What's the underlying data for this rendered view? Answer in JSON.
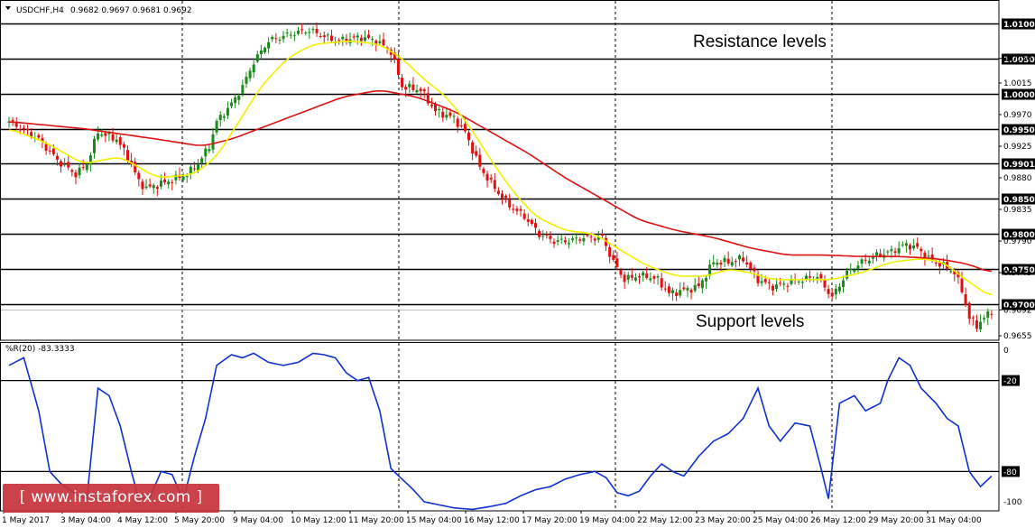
{
  "header": {
    "symbol": "USDCHF,H4",
    "ohlc": "0.9682 0.9697 0.9681 0.9692"
  },
  "annotations": {
    "resistance": "Resistance levels",
    "support": "Support levels"
  },
  "watermark": {
    "text": "[ www.instaforex.com ]"
  },
  "colors": {
    "bull": "#1a8a1a",
    "bear": "#e01010",
    "ma_fast": "#f0f000",
    "ma_slow": "#dd1111",
    "wpr": "#1030d0",
    "level_line": "#000000",
    "watermark": "#c8323c"
  },
  "chart_data": [
    {
      "type": "candlestick",
      "title": "USDCHF,H4",
      "ylim": [
        0.965,
        1.011
      ],
      "price_levels": [
        1.01,
        1.005,
        1.0,
        0.995,
        0.9901,
        0.985,
        0.98,
        0.975,
        0.97
      ],
      "price_level_labels": [
        "1.0100",
        "1.0050",
        "1.0000",
        "0.9950",
        "0.9901",
        "0.9850",
        "0.9800",
        "0.9750",
        "0.9700"
      ],
      "axis_ticks": [
        "1.0050",
        "1.0015",
        "0.9970",
        "0.9925",
        "0.9880",
        "0.9835",
        "0.9790",
        "0.9745",
        "0.9692",
        "0.9655"
      ],
      "current_price": 0.9692,
      "x_tick_labels": [
        "1 May 2017",
        "3 May 04:00",
        "4 May 12:00",
        "5 May 20:00",
        "9 May 04:00",
        "10 May 12:00",
        "11 May 20:00",
        "15 May 04:00",
        "16 May 12:00",
        "17 May 20:00",
        "19 May 04:00",
        "22 May 12:00",
        "23 May 20:00",
        "25 May 04:00",
        "26 May 12:00",
        "29 May 20:00",
        "31 May 04:00"
      ],
      "close_path": [
        [
          0,
          0.996
        ],
        [
          8,
          0.9935
        ],
        [
          13,
          0.9905
        ],
        [
          18,
          0.9885
        ],
        [
          21,
          0.99
        ],
        [
          24,
          0.9945
        ],
        [
          29,
          0.9935
        ],
        [
          32,
          0.991
        ],
        [
          35,
          0.9875
        ],
        [
          37,
          0.9865
        ],
        [
          43,
          0.9875
        ],
        [
          48,
          0.9885
        ],
        [
          51,
          0.99
        ],
        [
          54,
          0.9925
        ],
        [
          56,
          0.996
        ],
        [
          60,
          0.9985
        ],
        [
          63,
          1.001
        ],
        [
          66,
          1.0045
        ],
        [
          70,
          1.0075
        ],
        [
          76,
          1.0085
        ],
        [
          81,
          1.009
        ],
        [
          88,
          1.0075
        ],
        [
          95,
          1.008
        ],
        [
          99,
          1.0075
        ],
        [
          103,
          1.006
        ],
        [
          106,
          1.001
        ],
        [
          111,
          1.0005
        ],
        [
          115,
          0.9975
        ],
        [
          120,
          0.9965
        ],
        [
          123,
          0.9945
        ],
        [
          127,
          0.9895
        ],
        [
          131,
          0.9865
        ],
        [
          135,
          0.984
        ],
        [
          139,
          0.9825
        ],
        [
          143,
          0.98
        ],
        [
          147,
          0.979
        ],
        [
          151,
          0.979
        ],
        [
          155,
          0.9795
        ],
        [
          160,
          0.9795
        ],
        [
          163,
          0.976
        ],
        [
          166,
          0.9735
        ],
        [
          169,
          0.974
        ],
        [
          172,
          0.974
        ],
        [
          175,
          0.9735
        ],
        [
          178,
          0.9715
        ],
        [
          182,
          0.972
        ],
        [
          186,
          0.9725
        ],
        [
          190,
          0.976
        ],
        [
          194,
          0.976
        ],
        [
          198,
          0.9765
        ],
        [
          202,
          0.9735
        ],
        [
          206,
          0.9725
        ],
        [
          210,
          0.973
        ],
        [
          214,
          0.9735
        ],
        [
          218,
          0.974
        ],
        [
          222,
          0.971
        ],
        [
          226,
          0.9745
        ],
        [
          230,
          0.976
        ],
        [
          234,
          0.977
        ],
        [
          238,
          0.9775
        ],
        [
          242,
          0.9785
        ],
        [
          245,
          0.978
        ],
        [
          248,
          0.9765
        ],
        [
          252,
          0.9755
        ],
        [
          255,
          0.9745
        ],
        [
          257,
          0.972
        ],
        [
          259,
          0.968
        ],
        [
          261,
          0.967
        ],
        [
          263,
          0.968
        ],
        [
          265,
          0.9692
        ]
      ],
      "ma_fast_path": [
        [
          0,
          0.995
        ],
        [
          10,
          0.993
        ],
        [
          20,
          0.99
        ],
        [
          30,
          0.991
        ],
        [
          40,
          0.988
        ],
        [
          50,
          0.9885
        ],
        [
          56,
          0.991
        ],
        [
          62,
          0.996
        ],
        [
          68,
          1.001
        ],
        [
          75,
          1.005
        ],
        [
          82,
          1.007
        ],
        [
          92,
          1.0075
        ],
        [
          100,
          1.007
        ],
        [
          106,
          1.005
        ],
        [
          112,
          1.002
        ],
        [
          118,
          0.9995
        ],
        [
          124,
          0.9955
        ],
        [
          130,
          0.9905
        ],
        [
          136,
          0.986
        ],
        [
          142,
          0.9825
        ],
        [
          150,
          0.9805
        ],
        [
          158,
          0.98
        ],
        [
          164,
          0.978
        ],
        [
          172,
          0.9755
        ],
        [
          180,
          0.974
        ],
        [
          188,
          0.974
        ],
        [
          194,
          0.975
        ],
        [
          200,
          0.9745
        ],
        [
          206,
          0.9735
        ],
        [
          214,
          0.9735
        ],
        [
          222,
          0.9735
        ],
        [
          230,
          0.9745
        ],
        [
          238,
          0.976
        ],
        [
          246,
          0.9765
        ],
        [
          252,
          0.976
        ],
        [
          258,
          0.9735
        ],
        [
          265,
          0.971
        ]
      ],
      "ma_slow_path": [
        [
          0,
          0.996
        ],
        [
          20,
          0.995
        ],
        [
          40,
          0.9935
        ],
        [
          52,
          0.9925
        ],
        [
          60,
          0.9935
        ],
        [
          70,
          0.9955
        ],
        [
          80,
          0.9975
        ],
        [
          90,
          0.9995
        ],
        [
          100,
          1.0005
        ],
        [
          110,
          0.9995
        ],
        [
          120,
          0.9975
        ],
        [
          130,
          0.9945
        ],
        [
          140,
          0.9915
        ],
        [
          150,
          0.988
        ],
        [
          160,
          0.985
        ],
        [
          170,
          0.982
        ],
        [
          180,
          0.9805
        ],
        [
          190,
          0.9795
        ],
        [
          200,
          0.978
        ],
        [
          210,
          0.977
        ],
        [
          220,
          0.977
        ],
        [
          230,
          0.9768
        ],
        [
          240,
          0.9768
        ],
        [
          250,
          0.9765
        ],
        [
          258,
          0.9758
        ],
        [
          265,
          0.9745
        ]
      ]
    },
    {
      "type": "line",
      "title": "%R(20) -83.3333",
      "ylim": [
        -100,
        0
      ],
      "levels": [
        -20,
        -80
      ],
      "y_tick_labels": [
        "0",
        "-20",
        "-80",
        "-100"
      ],
      "current_value": -83.3333,
      "wpr_path": [
        [
          0,
          -10
        ],
        [
          4,
          -5
        ],
        [
          8,
          -40
        ],
        [
          11,
          -80
        ],
        [
          14,
          -88
        ],
        [
          18,
          -95
        ],
        [
          21,
          -98
        ],
        [
          24,
          -25
        ],
        [
          27,
          -30
        ],
        [
          30,
          -50
        ],
        [
          33,
          -80
        ],
        [
          35,
          -98
        ],
        [
          38,
          -97
        ],
        [
          41,
          -80
        ],
        [
          44,
          -82
        ],
        [
          47,
          -99
        ],
        [
          50,
          -70
        ],
        [
          53,
          -45
        ],
        [
          56,
          -10
        ],
        [
          60,
          -3
        ],
        [
          63,
          -5
        ],
        [
          66,
          -2
        ],
        [
          70,
          -8
        ],
        [
          74,
          -10
        ],
        [
          78,
          -8
        ],
        [
          82,
          -2
        ],
        [
          85,
          -3
        ],
        [
          88,
          -5
        ],
        [
          91,
          -15
        ],
        [
          94,
          -20
        ],
        [
          97,
          -18
        ],
        [
          100,
          -40
        ],
        [
          103,
          -78
        ],
        [
          106,
          -85
        ],
        [
          109,
          -92
        ],
        [
          112,
          -100
        ],
        [
          116,
          -102
        ],
        [
          120,
          -104
        ],
        [
          125,
          -105
        ],
        [
          130,
          -103
        ],
        [
          134,
          -101
        ],
        [
          138,
          -96
        ],
        [
          142,
          -92
        ],
        [
          146,
          -90
        ],
        [
          150,
          -85
        ],
        [
          154,
          -82
        ],
        [
          158,
          -80
        ],
        [
          161,
          -84
        ],
        [
          164,
          -94
        ],
        [
          167,
          -96
        ],
        [
          170,
          -93
        ],
        [
          173,
          -83
        ],
        [
          176,
          -75
        ],
        [
          179,
          -80
        ],
        [
          182,
          -83
        ],
        [
          186,
          -70
        ],
        [
          190,
          -60
        ],
        [
          194,
          -55
        ],
        [
          198,
          -45
        ],
        [
          202,
          -25
        ],
        [
          205,
          -50
        ],
        [
          208,
          -60
        ],
        [
          212,
          -48
        ],
        [
          216,
          -50
        ],
        [
          219,
          -78
        ],
        [
          221,
          -98
        ],
        [
          224,
          -35
        ],
        [
          228,
          -30
        ],
        [
          231,
          -40
        ],
        [
          235,
          -35
        ],
        [
          237,
          -20
        ],
        [
          240,
          -5
        ],
        [
          243,
          -10
        ],
        [
          246,
          -25
        ],
        [
          250,
          -35
        ],
        [
          253,
          -45
        ],
        [
          256,
          -50
        ],
        [
          259,
          -80
        ],
        [
          262,
          -90
        ],
        [
          265,
          -83
        ]
      ]
    }
  ]
}
